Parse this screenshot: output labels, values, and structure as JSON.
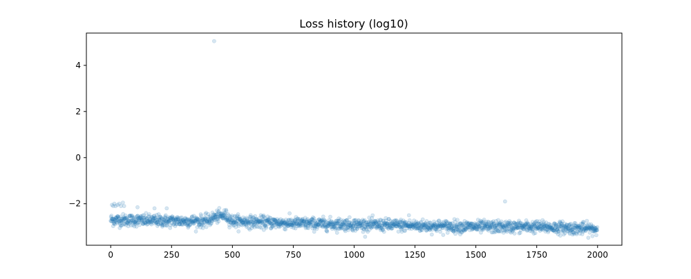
{
  "chart_data": {
    "type": "scatter",
    "title": "Loss history (log10)",
    "xlabel": "",
    "ylabel": "",
    "xlim": [
      -100,
      2100
    ],
    "ylim": [
      -3.8,
      5.4
    ],
    "x_ticks": [
      0,
      250,
      500,
      750,
      1000,
      1250,
      1500,
      1750,
      2000
    ],
    "x_tick_labels": [
      "0",
      "250",
      "500",
      "750",
      "1000",
      "1250",
      "1500",
      "1750",
      "2000"
    ],
    "y_ticks": [
      -2,
      0,
      2,
      4
    ],
    "y_tick_labels": [
      "−2",
      "0",
      "2",
      "4"
    ],
    "grid": false,
    "series": [
      {
        "name": "loss",
        "n_points": 2000,
        "x_start": 0,
        "x_end": 1999,
        "trend": [
          {
            "x": 0,
            "y": -2.7
          },
          {
            "x": 250,
            "y": -2.75
          },
          {
            "x": 400,
            "y": -2.75
          },
          {
            "x": 420,
            "y": -2.6
          },
          {
            "x": 470,
            "y": -2.5
          },
          {
            "x": 500,
            "y": -2.75
          },
          {
            "x": 750,
            "y": -2.85
          },
          {
            "x": 1000,
            "y": -2.9
          },
          {
            "x": 1250,
            "y": -2.95
          },
          {
            "x": 1500,
            "y": -3.0
          },
          {
            "x": 1750,
            "y": -3.0
          },
          {
            "x": 2000,
            "y": -3.1
          }
        ],
        "spread": 0.13,
        "outliers": [
          {
            "x": 5,
            "y": -2.05
          },
          {
            "x": 10,
            "y": -2.1
          },
          {
            "x": 15,
            "y": -2.0
          },
          {
            "x": 20,
            "y": -2.1
          },
          {
            "x": 28,
            "y": -2.05
          },
          {
            "x": 35,
            "y": -2.0
          },
          {
            "x": 42,
            "y": -2.1
          },
          {
            "x": 50,
            "y": -1.95
          },
          {
            "x": 55,
            "y": -2.1
          },
          {
            "x": 110,
            "y": -2.15
          },
          {
            "x": 180,
            "y": -2.2
          },
          {
            "x": 230,
            "y": -2.2
          },
          {
            "x": 425,
            "y": 5.05
          },
          {
            "x": 1225,
            "y": -2.5
          },
          {
            "x": 1620,
            "y": -1.9
          }
        ],
        "color": "#1f77b4",
        "alpha": 0.18
      }
    ]
  }
}
